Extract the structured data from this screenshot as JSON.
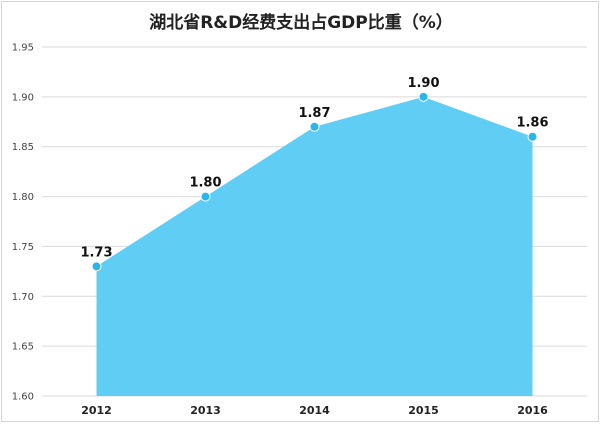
{
  "chart_data": {
    "type": "area",
    "title": "湖北省R&D经费支出占GDP比重（%）",
    "categories": [
      "2012",
      "2013",
      "2014",
      "2015",
      "2016"
    ],
    "series": [
      {
        "values": [
          1.73,
          1.8,
          1.87,
          1.9,
          1.86
        ]
      }
    ],
    "data_labels": [
      "1.73",
      "1.80",
      "1.87",
      "1.90",
      "1.86"
    ],
    "ylim": [
      1.6,
      1.95
    ],
    "yticks": [
      "1.60",
      "1.65",
      "1.70",
      "1.75",
      "1.80",
      "1.85",
      "1.90",
      "1.95"
    ],
    "xlabel": "",
    "ylabel": "",
    "grid": true,
    "legend": "none",
    "fill_color": "#5fcdf4",
    "marker_color": "#29b6ef"
  }
}
